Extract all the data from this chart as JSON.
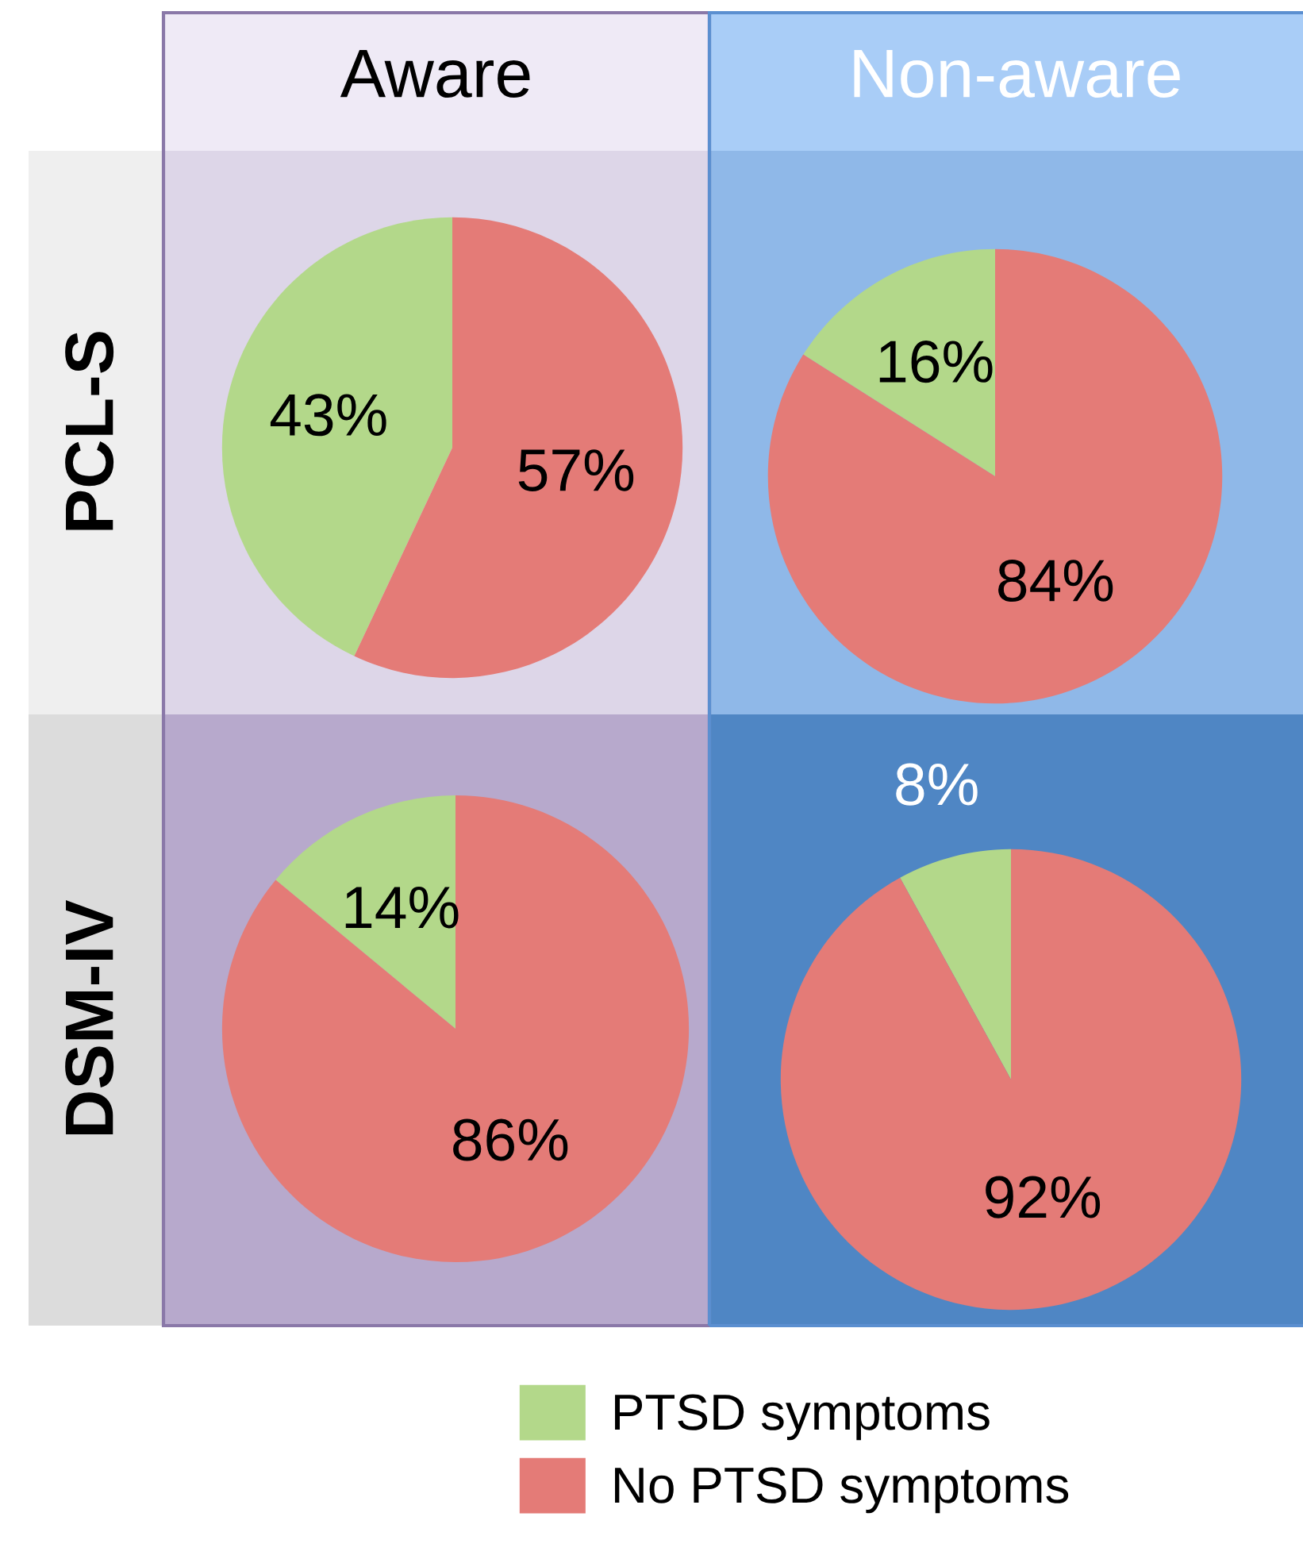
{
  "chart_data": [
    {
      "type": "pie",
      "title": "Aware",
      "ylabel": "PCL-S",
      "categories": [
        null,
        null
      ],
      "values": [
        43,
        57
      ],
      "value_labels": [
        "43%",
        "57%"
      ],
      "colors": [
        "#b3d88a",
        "#e47b77"
      ]
    },
    {
      "type": "pie",
      "title": "Non-aware",
      "categories": [
        null,
        null
      ],
      "values": [
        16,
        84
      ],
      "value_labels": [
        "16%",
        "84%"
      ],
      "colors": [
        "#b3d88a",
        "#e47b77"
      ]
    },
    {
      "type": "pie",
      "ylabel": "DSM-IV",
      "categories": [
        null,
        null
      ],
      "values": [
        14,
        86
      ],
      "value_labels": [
        "14%",
        "86%"
      ],
      "colors": [
        "#b3d88a",
        "#e47b77"
      ]
    },
    {
      "type": "pie",
      "categories": [
        "PTSD symptoms",
        "No PTSD symptoms"
      ],
      "values": [
        8,
        92
      ],
      "value_labels": [
        "8%",
        "92%"
      ],
      "colors": [
        "#b3d88a",
        "#e47b77"
      ],
      "legend": "bottom"
    }
  ]
}
